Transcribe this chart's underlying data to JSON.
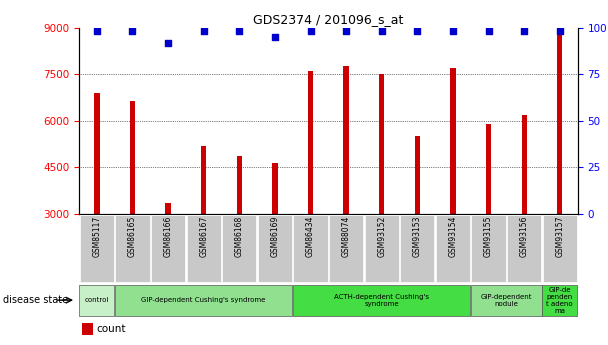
{
  "title": "GDS2374 / 201096_s_at",
  "samples": [
    "GSM85117",
    "GSM86165",
    "GSM86166",
    "GSM86167",
    "GSM86168",
    "GSM86169",
    "GSM86434",
    "GSM88074",
    "GSM93152",
    "GSM93153",
    "GSM93154",
    "GSM93155",
    "GSM93156",
    "GSM93157"
  ],
  "counts": [
    6900,
    6650,
    3350,
    5200,
    4850,
    4650,
    7600,
    7750,
    7500,
    5500,
    7700,
    5900,
    6200,
    8800
  ],
  "percentiles": [
    98,
    98,
    92,
    98,
    98,
    95,
    98,
    98,
    98,
    98,
    98,
    98,
    98,
    98
  ],
  "ylim_left": [
    3000,
    9000
  ],
  "ylim_right": [
    0,
    100
  ],
  "yticks_left": [
    3000,
    4500,
    6000,
    7500,
    9000
  ],
  "yticks_right": [
    0,
    25,
    50,
    75,
    100
  ],
  "disease_groups": [
    {
      "label": "control",
      "start": 0,
      "end": 1,
      "color": "#c8f0c8"
    },
    {
      "label": "GIP-dependent Cushing's syndrome",
      "start": 1,
      "end": 6,
      "color": "#90e090"
    },
    {
      "label": "ACTH-dependent Cushing's\nsyndrome",
      "start": 6,
      "end": 11,
      "color": "#44dd44"
    },
    {
      "label": "GIP-dependent\nnodule",
      "start": 11,
      "end": 13,
      "color": "#90e090"
    },
    {
      "label": "GIP-de\npenden\nt adeno\nma",
      "start": 13,
      "end": 14,
      "color": "#44dd44"
    }
  ],
  "bar_color": "#cc0000",
  "dot_color": "#0000cc",
  "tick_label_bg": "#c8c8c8",
  "disease_label": "disease state"
}
